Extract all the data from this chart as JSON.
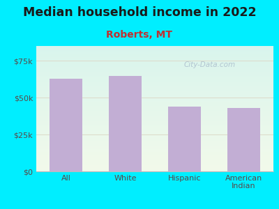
{
  "title": "Median household income in 2022",
  "subtitle": "Roberts, MT",
  "categories": [
    "All",
    "White",
    "Hispanic",
    "American\nIndian"
  ],
  "values": [
    63000,
    64500,
    44000,
    43000
  ],
  "bar_color": "#c2aed4",
  "background_outer": "#00eeff",
  "bg_top_left": "#daf5e8",
  "bg_top_right": "#e8f8f8",
  "bg_bottom_left": "#f5faee",
  "bg_bottom_right": "#f8faf0",
  "yticks": [
    0,
    25000,
    50000,
    75000
  ],
  "ytick_labels": [
    "$0",
    "$25k",
    "$50k",
    "$75k"
  ],
  "ylim": [
    0,
    85000
  ],
  "title_fontsize": 12.5,
  "subtitle_fontsize": 10,
  "tick_label_fontsize": 8,
  "axis_label_color": "#5a4848",
  "subtitle_color": "#c03030",
  "title_color": "#1a1a1a",
  "watermark": "City-Data.com",
  "watermark_color": "#aabccc",
  "grid_color": "#ddddcc",
  "bottom_spine_color": "#bbbbbb"
}
